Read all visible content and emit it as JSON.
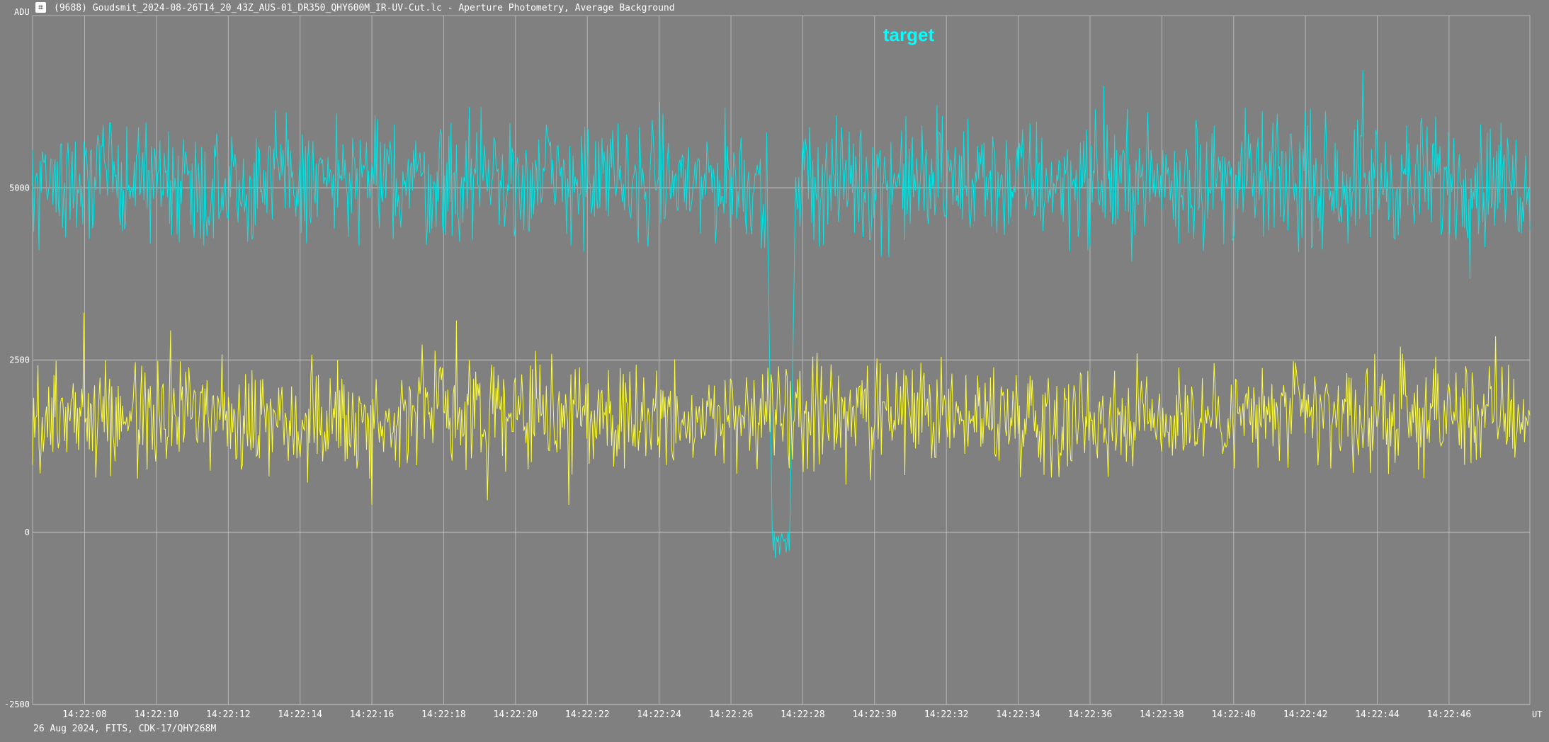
{
  "window": {
    "title": "(9688) Goudsmit_2024-08-26T14_20_43Z_AUS-01_DR350_QHY600M_IR-UV-Cut.lc - Aperture Photometry, Average Background",
    "icon": "photometry-app-icon"
  },
  "footer": {
    "text": "26 Aug 2024, FITS, CDK-17/QHY268M"
  },
  "chart_data": {
    "type": "line",
    "title": "",
    "ylabel": "ADU",
    "xlabel": "UT",
    "ylim": [
      -2500,
      7500
    ],
    "yticks": [
      -2500,
      0,
      2500,
      5000
    ],
    "ytick_labels": [
      "-2500",
      "0",
      "2500",
      "5000"
    ],
    "xlim": [
      "14:22:06.55",
      "14:22:48.25"
    ],
    "xticks": [
      "14:22:08",
      "14:22:10",
      "14:22:12",
      "14:22:14",
      "14:22:16",
      "14:22:18",
      "14:22:20",
      "14:22:22",
      "14:22:24",
      "14:22:26",
      "14:22:28",
      "14:22:30",
      "14:22:32",
      "14:22:34",
      "14:22:36",
      "14:22:38",
      "14:22:40",
      "14:22:42",
      "14:22:44",
      "14:22:46"
    ],
    "grid": true,
    "annotation": {
      "text": "target",
      "color": "#00ffff"
    },
    "series": [
      {
        "color": "#00e5e5",
        "mean": 5100,
        "spread": 650,
        "dropout": {
          "start": "14:22:27.0",
          "end": "14:22:27.8",
          "min": -400
        }
      },
      {
        "color": "#ffff33",
        "mean": 1700,
        "spread": 550
      }
    ]
  }
}
